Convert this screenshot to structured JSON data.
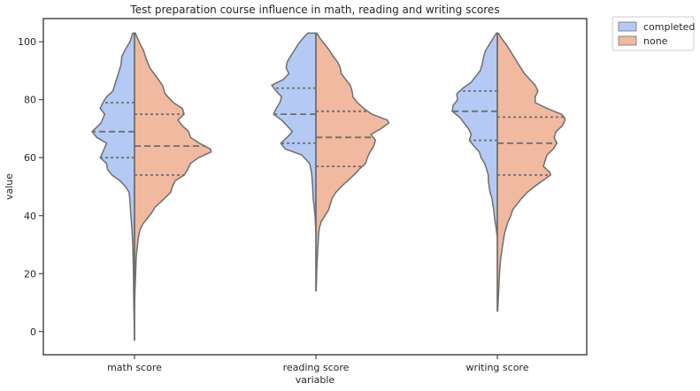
{
  "chart_data": {
    "type": "violin",
    "title": "Test preparation course influence in math, reading and writing scores",
    "xlabel": "variable",
    "ylabel": "value",
    "ylim": [
      -8,
      108
    ],
    "yticks": [
      0,
      20,
      40,
      60,
      80,
      100
    ],
    "categories": [
      "math score",
      "reading score",
      "writing score"
    ],
    "legend": {
      "placement": "outside-top-right",
      "entries": [
        {
          "label": "completed",
          "color": "#b4c9f4"
        },
        {
          "label": "none",
          "color": "#f0b9a0"
        }
      ]
    },
    "series": [
      {
        "name": "completed",
        "side": "left",
        "color": "#b4c9f4",
        "violins": [
          {
            "category": "math score",
            "quartiles": [
              60,
              69,
              79
            ],
            "outline": [
              [
                103,
                0.02
              ],
              [
                100,
                0.05
              ],
              [
                98,
                0.09
              ],
              [
                95,
                0.14
              ],
              [
                92,
                0.15
              ],
              [
                89,
                0.18
              ],
              [
                86,
                0.21
              ],
              [
                83,
                0.24
              ],
              [
                81,
                0.31
              ],
              [
                79,
                0.35
              ],
              [
                77,
                0.38
              ],
              [
                75,
                0.33
              ],
              [
                72,
                0.37
              ],
              [
                69,
                0.47
              ],
              [
                67,
                0.42
              ],
              [
                65,
                0.31
              ],
              [
                62,
                0.35
              ],
              [
                60,
                0.38
              ],
              [
                58,
                0.31
              ],
              [
                56,
                0.3
              ],
              [
                54,
                0.25
              ],
              [
                52,
                0.16
              ],
              [
                50,
                0.1
              ],
              [
                48,
                0.06
              ],
              [
                45,
                0.05
              ],
              [
                42,
                0.045
              ],
              [
                38,
                0.035
              ],
              [
                34,
                0.025
              ],
              [
                30,
                0.02
              ],
              [
                25,
                0.015
              ],
              [
                20,
                0.012
              ],
              [
                15,
                0.01
              ],
              [
                10,
                0.008
              ],
              [
                5,
                0.005
              ],
              [
                0,
                0.003
              ],
              [
                -3,
                0.002
              ]
            ]
          },
          {
            "category": "reading score",
            "quartiles": [
              65,
              75,
              84
            ],
            "outline": [
              [
                103,
                0.09
              ],
              [
                101,
                0.15
              ],
              [
                99,
                0.2
              ],
              [
                97,
                0.24
              ],
              [
                95,
                0.28
              ],
              [
                93,
                0.32
              ],
              [
                91,
                0.33
              ],
              [
                89,
                0.3
              ],
              [
                87,
                0.36
              ],
              [
                85,
                0.49
              ],
              [
                83,
                0.44
              ],
              [
                81,
                0.38
              ],
              [
                79,
                0.4
              ],
              [
                77,
                0.44
              ],
              [
                75,
                0.47
              ],
              [
                73,
                0.38
              ],
              [
                71,
                0.32
              ],
              [
                69,
                0.26
              ],
              [
                67,
                0.32
              ],
              [
                65,
                0.39
              ],
              [
                63,
                0.34
              ],
              [
                61,
                0.16
              ],
              [
                58,
                0.07
              ],
              [
                55,
                0.05
              ],
              [
                52,
                0.04
              ],
              [
                49,
                0.035
              ],
              [
                46,
                0.03
              ],
              [
                43,
                0.02
              ],
              [
                40,
                0.01
              ],
              [
                37,
                0.005
              ],
              [
                35,
                0.002
              ]
            ]
          },
          {
            "category": "writing score",
            "quartiles": [
              66,
              76,
              83
            ],
            "outline": [
              [
                103,
                0.01
              ],
              [
                101,
                0.05
              ],
              [
                99,
                0.09
              ],
              [
                97,
                0.13
              ],
              [
                95,
                0.15
              ],
              [
                92,
                0.17
              ],
              [
                90,
                0.19
              ],
              [
                88,
                0.24
              ],
              [
                86,
                0.29
              ],
              [
                84,
                0.38
              ],
              [
                82,
                0.45
              ],
              [
                80,
                0.44
              ],
              [
                78,
                0.49
              ],
              [
                76,
                0.5
              ],
              [
                74,
                0.42
              ],
              [
                72,
                0.37
              ],
              [
                70,
                0.32
              ],
              [
                68,
                0.29
              ],
              [
                66,
                0.31
              ],
              [
                64,
                0.26
              ],
              [
                62,
                0.2
              ],
              [
                60,
                0.18
              ],
              [
                58,
                0.14
              ],
              [
                56,
                0.12
              ],
              [
                54,
                0.1
              ],
              [
                52,
                0.1
              ],
              [
                50,
                0.09
              ],
              [
                48,
                0.08
              ],
              [
                46,
                0.06
              ],
              [
                44,
                0.05
              ],
              [
                42,
                0.04
              ],
              [
                39,
                0.03
              ],
              [
                36,
                0.015
              ],
              [
                33,
                0.003
              ]
            ]
          }
        ]
      },
      {
        "name": "none",
        "side": "right",
        "color": "#f0b9a0",
        "violins": [
          {
            "category": "math score",
            "quartiles": [
              54,
              64,
              75
            ],
            "outline": [
              [
                103,
                0.01
              ],
              [
                100,
                0.05
              ],
              [
                97,
                0.1
              ],
              [
                94,
                0.13
              ],
              [
                91,
                0.17
              ],
              [
                88,
                0.24
              ],
              [
                85,
                0.31
              ],
              [
                82,
                0.34
              ],
              [
                79,
                0.43
              ],
              [
                77,
                0.53
              ],
              [
                75,
                0.55
              ],
              [
                73,
                0.48
              ],
              [
                71,
                0.53
              ],
              [
                69,
                0.6
              ],
              [
                67,
                0.62
              ],
              [
                65,
                0.72
              ],
              [
                63,
                0.84
              ],
              [
                62,
                0.85
              ],
              [
                60,
                0.71
              ],
              [
                58,
                0.62
              ],
              [
                56,
                0.59
              ],
              [
                54,
                0.55
              ],
              [
                52,
                0.45
              ],
              [
                50,
                0.42
              ],
              [
                48,
                0.4
              ],
              [
                45,
                0.3
              ],
              [
                43,
                0.23
              ],
              [
                41,
                0.19
              ],
              [
                39,
                0.14
              ],
              [
                37,
                0.09
              ],
              [
                35,
                0.06
              ],
              [
                32,
                0.04
              ],
              [
                29,
                0.03
              ],
              [
                26,
                0.02
              ],
              [
                22,
                0.015
              ],
              [
                18,
                0.01
              ],
              [
                14,
                0.005
              ],
              [
                10,
                0.002
              ],
              [
                8,
                0.001
              ]
            ]
          },
          {
            "category": "reading score",
            "quartiles": [
              57,
              67,
              76
            ],
            "outline": [
              [
                103,
                0.01
              ],
              [
                101,
                0.05
              ],
              [
                99,
                0.1
              ],
              [
                97,
                0.15
              ],
              [
                95,
                0.19
              ],
              [
                93,
                0.24
              ],
              [
                91,
                0.27
              ],
              [
                89,
                0.28
              ],
              [
                87,
                0.33
              ],
              [
                85,
                0.38
              ],
              [
                83,
                0.4
              ],
              [
                81,
                0.41
              ],
              [
                79,
                0.46
              ],
              [
                77,
                0.53
              ],
              [
                75,
                0.62
              ],
              [
                73,
                0.79
              ],
              [
                72,
                0.81
              ],
              [
                70,
                0.72
              ],
              [
                68,
                0.61
              ],
              [
                66,
                0.66
              ],
              [
                64,
                0.64
              ],
              [
                62,
                0.6
              ],
              [
                60,
                0.57
              ],
              [
                58,
                0.55
              ],
              [
                56,
                0.48
              ],
              [
                54,
                0.42
              ],
              [
                52,
                0.35
              ],
              [
                50,
                0.28
              ],
              [
                48,
                0.22
              ],
              [
                46,
                0.18
              ],
              [
                44,
                0.16
              ],
              [
                42,
                0.14
              ],
              [
                40,
                0.1
              ],
              [
                38,
                0.06
              ],
              [
                36,
                0.04
              ],
              [
                34,
                0.03
              ],
              [
                31,
                0.025
              ],
              [
                28,
                0.02
              ],
              [
                25,
                0.015
              ],
              [
                22,
                0.01
              ],
              [
                19,
                0.008
              ],
              [
                16,
                0.005
              ],
              [
                14,
                0.003
              ]
            ]
          },
          {
            "category": "writing score",
            "quartiles": [
              54,
              65,
              74
            ],
            "outline": [
              [
                103,
                0.01
              ],
              [
                101,
                0.05
              ],
              [
                99,
                0.1
              ],
              [
                97,
                0.14
              ],
              [
                95,
                0.18
              ],
              [
                93,
                0.22
              ],
              [
                91,
                0.26
              ],
              [
                89,
                0.3
              ],
              [
                87,
                0.36
              ],
              [
                85,
                0.42
              ],
              [
                83,
                0.45
              ],
              [
                81,
                0.42
              ],
              [
                79,
                0.42
              ],
              [
                77,
                0.55
              ],
              [
                75,
                0.71
              ],
              [
                74,
                0.74
              ],
              [
                73,
                0.75
              ],
              [
                71,
                0.72
              ],
              [
                69,
                0.65
              ],
              [
                67,
                0.63
              ],
              [
                65,
                0.66
              ],
              [
                63,
                0.62
              ],
              [
                61,
                0.55
              ],
              [
                59,
                0.53
              ],
              [
                57,
                0.51
              ],
              [
                55,
                0.58
              ],
              [
                54,
                0.59
              ],
              [
                52,
                0.5
              ],
              [
                50,
                0.41
              ],
              [
                48,
                0.33
              ],
              [
                46,
                0.27
              ],
              [
                44,
                0.22
              ],
              [
                42,
                0.17
              ],
              [
                40,
                0.15
              ],
              [
                38,
                0.12
              ],
              [
                36,
                0.1
              ],
              [
                34,
                0.08
              ],
              [
                32,
                0.07
              ],
              [
                30,
                0.06
              ],
              [
                28,
                0.05
              ],
              [
                26,
                0.04
              ],
              [
                23,
                0.03
              ],
              [
                20,
                0.025
              ],
              [
                17,
                0.02
              ],
              [
                14,
                0.015
              ],
              [
                11,
                0.01
              ],
              [
                8,
                0.006
              ],
              [
                7,
                0.003
              ]
            ]
          }
        ]
      }
    ]
  }
}
